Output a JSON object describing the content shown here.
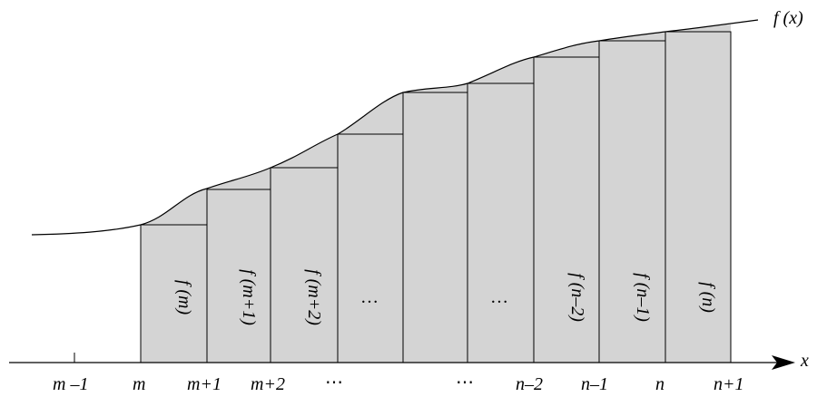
{
  "figure": {
    "curve_label": "f (x)",
    "x_axis_label": "x",
    "tick_labels": [
      "m –1",
      "m",
      "m+1",
      "m+2",
      "⋯",
      "⋯",
      "n–2",
      "n–1",
      "n",
      "n+1"
    ],
    "bar_labels": [
      "f (m)",
      "f (m+1)",
      "f (m+2)",
      "…",
      "…",
      "f (n–2)",
      "f (n–1)",
      "f (n)"
    ],
    "colors": {
      "bar_fill": "#d4d4d4",
      "stroke": "#000000",
      "curve_fill": "#d4d4d4"
    }
  }
}
